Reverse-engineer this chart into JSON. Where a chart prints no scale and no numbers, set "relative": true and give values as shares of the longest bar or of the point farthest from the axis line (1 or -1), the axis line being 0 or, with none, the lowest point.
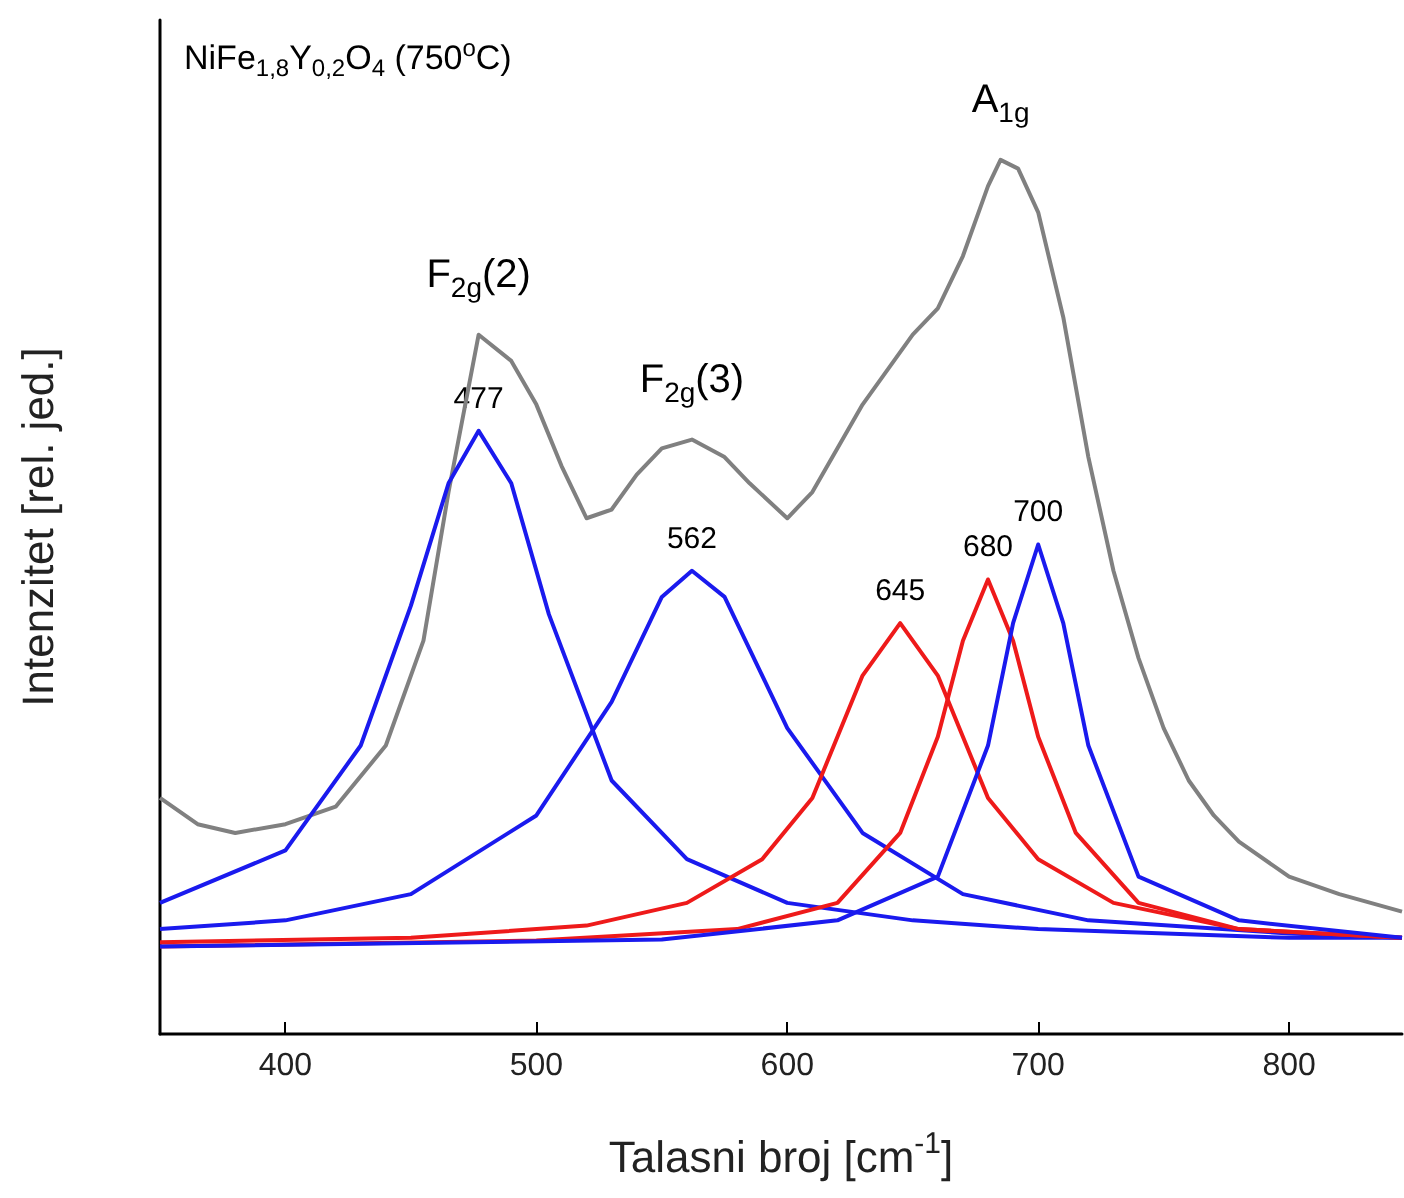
{
  "chart_data": {
    "type": "line",
    "relative": true,
    "xlabel": "Talasni broj [cm$^{-1}$]",
    "ylabel": "Intenzitet [rel. jed.]",
    "xlim": [
      350,
      845
    ],
    "xticks": [
      400,
      500,
      600,
      700,
      800
    ],
    "tick_labels": "x",
    "grid": false,
    "marker": "none",
    "line_style": "solid",
    "series": [
      {
        "color": "#808080",
        "x": [
          350,
          365,
          380,
          400,
          420,
          440,
          455,
          465,
          477,
          490,
          500,
          510,
          520,
          530,
          540,
          550,
          562,
          575,
          585,
          600,
          610,
          620,
          630,
          640,
          650,
          660,
          670,
          680,
          685,
          692,
          700,
          710,
          720,
          730,
          740,
          750,
          760,
          770,
          780,
          800,
          820,
          845
        ],
        "values": [
          0.27,
          0.24,
          0.23,
          0.24,
          0.26,
          0.33,
          0.45,
          0.62,
          0.8,
          0.77,
          0.72,
          0.65,
          0.59,
          0.6,
          0.64,
          0.67,
          0.68,
          0.66,
          0.63,
          0.59,
          0.62,
          0.67,
          0.72,
          0.76,
          0.8,
          0.83,
          0.89,
          0.97,
          1.0,
          0.99,
          0.94,
          0.82,
          0.66,
          0.53,
          0.43,
          0.35,
          0.29,
          0.25,
          0.22,
          0.18,
          0.16,
          0.14
        ]
      },
      {
        "color": "#1a1aee",
        "x": [
          350,
          400,
          430,
          450,
          465,
          477,
          490,
          505,
          530,
          560,
          600,
          650,
          700,
          800,
          845
        ],
        "values": [
          0.15,
          0.21,
          0.33,
          0.49,
          0.63,
          0.69,
          0.63,
          0.48,
          0.29,
          0.2,
          0.15,
          0.13,
          0.12,
          0.11,
          0.11
        ]
      },
      {
        "color": "#1a1aee",
        "x": [
          350,
          400,
          450,
          500,
          530,
          550,
          562,
          575,
          600,
          630,
          670,
          720,
          800,
          845
        ],
        "values": [
          0.12,
          0.13,
          0.16,
          0.25,
          0.38,
          0.5,
          0.53,
          0.5,
          0.35,
          0.23,
          0.16,
          0.13,
          0.115,
          0.11
        ]
      },
      {
        "color": "#ee1a1a",
        "x": [
          350,
          450,
          520,
          560,
          590,
          610,
          630,
          645,
          660,
          680,
          700,
          730,
          780,
          845
        ],
        "values": [
          0.105,
          0.11,
          0.124,
          0.15,
          0.2,
          0.27,
          0.41,
          0.47,
          0.41,
          0.27,
          0.2,
          0.15,
          0.12,
          0.11
        ]
      },
      {
        "color": "#ee1a1a",
        "x": [
          350,
          500,
          580,
          620,
          645,
          660,
          670,
          680,
          690,
          700,
          715,
          740,
          780,
          845
        ],
        "values": [
          0.1,
          0.107,
          0.12,
          0.15,
          0.23,
          0.34,
          0.45,
          0.52,
          0.45,
          0.34,
          0.23,
          0.15,
          0.12,
          0.11
        ]
      },
      {
        "color": "#1a1aee",
        "x": [
          350,
          550,
          620,
          660,
          680,
          690,
          700,
          710,
          720,
          740,
          780,
          845
        ],
        "values": [
          0.1,
          0.108,
          0.13,
          0.18,
          0.33,
          0.47,
          0.56,
          0.47,
          0.33,
          0.18,
          0.13,
          0.11
        ]
      }
    ],
    "annotations": [
      "NiFe$_{1,8}$Y$_{0,2}$O$_{4}$ (750$^{o}$C)",
      {
        "text": "F$_{2g}$(2)",
        "x": 477,
        "y": 0.8
      },
      {
        "text": "F$_{2g}$(3)",
        "x": 562,
        "y": 0.68
      },
      {
        "text": "A$_{1g}$",
        "x": 685,
        "y": 1.0
      },
      {
        "text": "477",
        "x": 477,
        "y": 0.69
      },
      {
        "text": "562",
        "x": 562,
        "y": 0.53
      },
      {
        "text": "645",
        "x": 645,
        "y": 0.47
      },
      {
        "text": "680",
        "x": 680,
        "y": 0.52
      },
      {
        "text": "700",
        "x": 700,
        "y": 0.56
      }
    ]
  }
}
